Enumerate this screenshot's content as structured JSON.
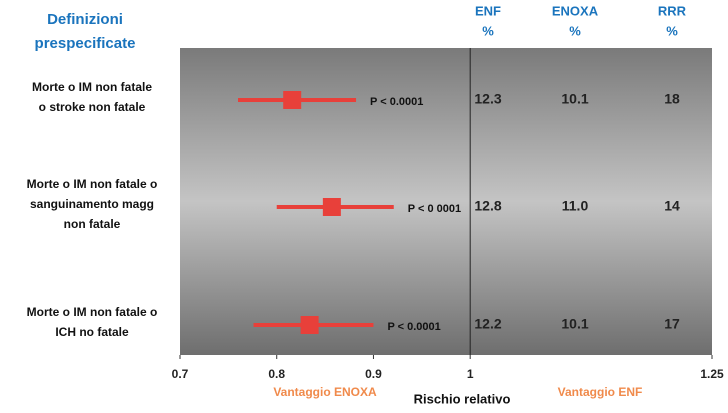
{
  "chart_data": {
    "type": "forest",
    "header_left": [
      "Definizioni",
      "prespecificate"
    ],
    "column_headers": [
      [
        "ENF",
        "%"
      ],
      [
        "ENOXA",
        "%"
      ],
      [
        "RRR",
        "%"
      ]
    ],
    "rows": [
      [
        "Morte o IM non fatale",
        "o stroke non  fatale"
      ],
      [
        "Morte o IM non fatale o",
        "sanguinamento magg",
        "non fatale"
      ],
      [
        "Morte o IM non fatale o",
        "ICH no fatale"
      ]
    ],
    "estimates": [
      0.816,
      0.857,
      0.834
    ],
    "ci_low": [
      0.76,
      0.8,
      0.776
    ],
    "ci_high": [
      0.882,
      0.921,
      0.9
    ],
    "p_labels": [
      "P < 0.0001",
      "P < 0 0001",
      "P < 0.0001"
    ],
    "table": [
      [
        "12.3",
        "10.1",
        "18"
      ],
      [
        "12.8",
        "11.0",
        "14"
      ],
      [
        "12.2",
        "10.1",
        "17"
      ]
    ],
    "color": "#e8403a",
    "reference": 1,
    "xlim": [
      0.7,
      1.25
    ],
    "xticks": [
      0.7,
      0.8,
      0.9,
      1,
      1.25
    ],
    "xlabel": "Rischio relativo",
    "left_note": "Vantaggio ENOXA",
    "right_note": "Vantaggio ENF"
  }
}
